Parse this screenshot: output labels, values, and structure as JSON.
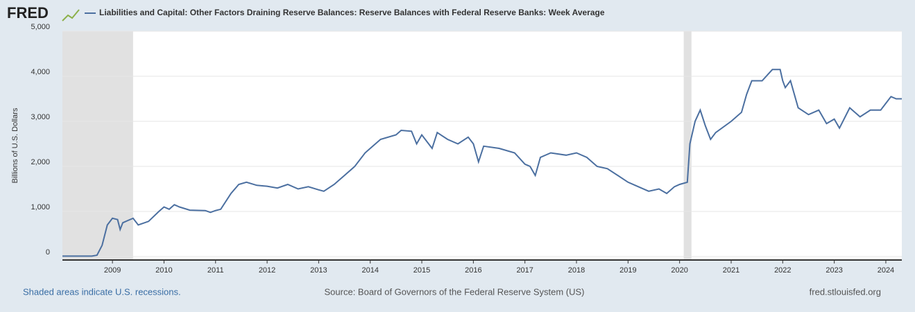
{
  "chart_data": {
    "type": "line",
    "brand": "FRED",
    "title": "Liabilities and Capital: Other Factors Draining Reserve Balances: Reserve Balances with Federal Reserve Banks: Week Average",
    "y_label": "Billions of U.S. Dollars",
    "note": "Shaded areas indicate U.S. recessions.",
    "source": "Source: Board of Governors of the Federal Reserve System (US)",
    "site": "fred.stlouisfed.org",
    "xlim": [
      2008.03,
      2024.31
    ],
    "xticks": [
      2009,
      2010,
      2011,
      2012,
      2013,
      2014,
      2015,
      2016,
      2017,
      2018,
      2019,
      2020,
      2021,
      2022,
      2023,
      2024
    ],
    "ylim": [
      0,
      5000
    ],
    "yticks": [
      0,
      {
        "value": 1000,
        "label": "1,000"
      },
      {
        "value": 2000,
        "label": "2,000"
      },
      {
        "value": 3000,
        "label": "3,000"
      },
      {
        "value": 4000,
        "label": "4,000"
      },
      {
        "value": 5000,
        "label": "5,000"
      }
    ],
    "grid": true,
    "recessions": [
      [
        2008.03,
        2009.4
      ],
      [
        2020.08,
        2020.23
      ]
    ],
    "recession_color": "#e1e1e1",
    "series": [
      {
        "name": "Liabilities and Capital: Other Factors Draining Reserve Balances: Reserve Balances with Federal Reserve Banks: Week Average",
        "color": "#4b6fa0",
        "x": [
          2008.03,
          2008.6,
          2008.7,
          2008.8,
          2008.9,
          2009.0,
          2009.1,
          2009.15,
          2009.2,
          2009.3,
          2009.4,
          2009.5,
          2009.7,
          2009.9,
          2010.0,
          2010.1,
          2010.2,
          2010.3,
          2010.5,
          2010.8,
          2010.9,
          2011.0,
          2011.1,
          2011.3,
          2011.45,
          2011.6,
          2011.8,
          2012.0,
          2012.2,
          2012.4,
          2012.6,
          2012.8,
          2013.0,
          2013.1,
          2013.3,
          2013.5,
          2013.7,
          2013.9,
          2014.0,
          2014.2,
          2014.5,
          2014.6,
          2014.8,
          2014.9,
          2015.0,
          2015.2,
          2015.3,
          2015.5,
          2015.7,
          2015.9,
          2016.0,
          2016.1,
          2016.2,
          2016.5,
          2016.8,
          2017.0,
          2017.1,
          2017.2,
          2017.3,
          2017.5,
          2017.8,
          2018.0,
          2018.2,
          2018.4,
          2018.6,
          2018.8,
          2019.0,
          2019.2,
          2019.4,
          2019.6,
          2019.75,
          2019.9,
          2020.0,
          2020.15,
          2020.2,
          2020.3,
          2020.4,
          2020.5,
          2020.6,
          2020.7,
          2021.0,
          2021.2,
          2021.3,
          2021.4,
          2021.6,
          2021.8,
          2021.95,
          2022.0,
          2022.05,
          2022.15,
          2022.3,
          2022.5,
          2022.7,
          2022.85,
          2023.0,
          2023.1,
          2023.3,
          2023.5,
          2023.7,
          2023.9,
          2024.0,
          2024.1,
          2024.2,
          2024.31
        ],
        "values": [
          10,
          10,
          30,
          250,
          700,
          850,
          820,
          600,
          750,
          800,
          850,
          700,
          780,
          1000,
          1100,
          1050,
          1150,
          1100,
          1030,
          1020,
          980,
          1020,
          1050,
          1400,
          1600,
          1650,
          1580,
          1560,
          1520,
          1600,
          1500,
          1550,
          1480,
          1450,
          1600,
          1800,
          2000,
          2300,
          2400,
          2600,
          2700,
          2800,
          2780,
          2500,
          2700,
          2400,
          2750,
          2600,
          2500,
          2650,
          2500,
          2100,
          2450,
          2400,
          2300,
          2050,
          2000,
          1800,
          2200,
          2300,
          2250,
          2300,
          2200,
          2000,
          1950,
          1800,
          1650,
          1550,
          1450,
          1500,
          1400,
          1550,
          1600,
          1650,
          2500,
          3000,
          3250,
          2900,
          2600,
          2750,
          3000,
          3200,
          3600,
          3900,
          3900,
          4150,
          4150,
          3900,
          3750,
          3900,
          3300,
          3150,
          3250,
          2950,
          3050,
          2850,
          3300,
          3100,
          3250,
          3250,
          3400,
          3550,
          3500,
          3500
        ]
      }
    ]
  }
}
